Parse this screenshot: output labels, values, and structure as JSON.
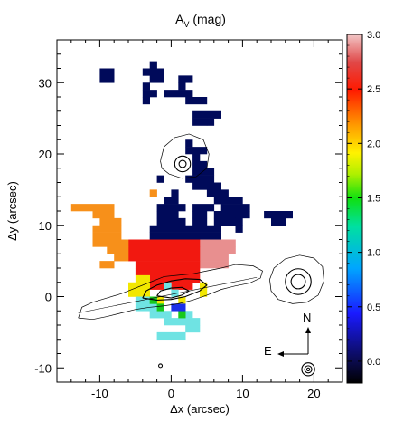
{
  "chart_data": {
    "type": "heatmap",
    "title_main": "A",
    "title_sub": "V",
    "title_unit": " (mag)",
    "xlabel": "Δx (arcsec)",
    "ylabel": "Δy (arcsec)",
    "xlim": [
      -16,
      24
    ],
    "ylim": [
      -12,
      36
    ],
    "xticks": [
      -10,
      0,
      10,
      20
    ],
    "yticks": [
      -10,
      0,
      10,
      20,
      30
    ],
    "colorbar": {
      "range": [
        -0.2,
        3.0
      ],
      "ticks": [
        "0.0",
        "0.5",
        "1.0",
        "1.5",
        "2.0",
        "2.5",
        "3.0"
      ],
      "tick_values": [
        0.0,
        0.5,
        1.0,
        1.5,
        2.0,
        2.5,
        3.0
      ]
    },
    "compass": {
      "north": "N",
      "east": "E"
    },
    "cell_size": 1,
    "regions": [
      {
        "av": 0.0,
        "color": "#000a5a",
        "rects": [
          [
            -10,
            30,
            2,
            2
          ],
          [
            -3,
            32,
            1,
            1
          ],
          [
            -4,
            31,
            3,
            1
          ],
          [
            -3,
            30,
            2,
            1
          ],
          [
            -4,
            29,
            1,
            1
          ],
          [
            1,
            30,
            2,
            1
          ],
          [
            1,
            29,
            1,
            1
          ],
          [
            -1,
            28,
            4,
            1
          ],
          [
            -4,
            28,
            2,
            1
          ],
          [
            2,
            27,
            3,
            1
          ],
          [
            -4,
            27,
            1,
            1
          ],
          [
            3,
            25,
            4,
            1
          ],
          [
            3,
            24,
            2,
            1
          ],
          [
            5,
            24,
            1,
            1
          ],
          [
            2,
            21,
            1,
            1
          ],
          [
            2,
            20,
            3,
            1
          ],
          [
            3,
            19,
            1,
            1
          ],
          [
            3,
            18,
            2,
            1
          ],
          [
            3,
            17,
            3,
            1
          ],
          [
            2,
            16,
            4,
            1
          ],
          [
            -2,
            16,
            1,
            1
          ],
          [
            3,
            15,
            4,
            1
          ],
          [
            5,
            14,
            3,
            1
          ],
          [
            0,
            14,
            1,
            1
          ],
          [
            -1,
            13,
            1,
            1
          ],
          [
            6,
            13,
            4,
            1
          ],
          [
            0,
            13,
            1,
            1
          ],
          [
            -2,
            12,
            4,
            1
          ],
          [
            3,
            12,
            3,
            1
          ],
          [
            7,
            12,
            4,
            1
          ],
          [
            -2,
            11,
            3,
            1
          ],
          [
            3,
            11,
            2,
            1
          ],
          [
            6,
            11,
            3,
            1
          ],
          [
            9,
            11,
            2,
            1
          ],
          [
            13,
            11,
            4,
            1
          ],
          [
            -2,
            10,
            4,
            1
          ],
          [
            3,
            10,
            2,
            1
          ],
          [
            6,
            10,
            3,
            1
          ],
          [
            9,
            10,
            1,
            1
          ],
          [
            14,
            10,
            2,
            1
          ],
          [
            -3,
            9,
            10,
            1
          ],
          [
            9,
            9,
            1,
            1
          ],
          [
            -3,
            8,
            10,
            1
          ]
        ]
      },
      {
        "av": 2.75,
        "color": "#e88f8f",
        "rects": [
          [
            4,
            7,
            5,
            1
          ],
          [
            4,
            6,
            5,
            1
          ],
          [
            4,
            5,
            4,
            1
          ],
          [
            4,
            4,
            4,
            1
          ]
        ]
      },
      {
        "av": 2.5,
        "color": "#f21810",
        "rects": [
          [
            -6,
            7,
            10,
            1
          ],
          [
            -6,
            6,
            10,
            1
          ],
          [
            -6,
            5,
            10,
            1
          ],
          [
            -5,
            4,
            9,
            1
          ],
          [
            -5,
            3,
            9,
            1
          ],
          [
            -4,
            2,
            8,
            1
          ],
          [
            -3,
            1,
            6,
            1
          ]
        ]
      },
      {
        "av": 1.8,
        "color": "#f7901a",
        "rects": [
          [
            -14,
            12,
            6,
            1
          ],
          [
            -11,
            11,
            3,
            1
          ],
          [
            -10,
            10,
            3,
            1
          ],
          [
            -11,
            9,
            4,
            1
          ],
          [
            -11,
            8,
            4,
            1
          ],
          [
            -11,
            7,
            5,
            1
          ],
          [
            -9,
            6,
            3,
            1
          ],
          [
            -8,
            5,
            2,
            1
          ],
          [
            -10,
            4,
            2,
            1
          ],
          [
            -3,
            14,
            1,
            1
          ]
        ]
      },
      {
        "av": 1.3,
        "color": "#f2e700",
        "rects": [
          [
            -5,
            2,
            2,
            1
          ],
          [
            -6,
            1,
            3,
            1
          ],
          [
            -6,
            0,
            3,
            1
          ],
          [
            4,
            1,
            1,
            1
          ],
          [
            4,
            0,
            1,
            1
          ],
          [
            -2,
            -1,
            1,
            1
          ],
          [
            1,
            -1,
            1,
            1
          ]
        ]
      },
      {
        "av": 1.0,
        "color": "#6fe3e3",
        "rects": [
          [
            -5,
            -1,
            3,
            1
          ],
          [
            -5,
            -2,
            3,
            1
          ],
          [
            -3,
            -3,
            3,
            1
          ],
          [
            2,
            -3,
            1,
            1
          ],
          [
            -1,
            -4,
            5,
            1
          ],
          [
            2,
            -5,
            2,
            1
          ],
          [
            -2,
            -6,
            4,
            1
          ],
          [
            0,
            0,
            1,
            1
          ],
          [
            -1,
            1,
            1,
            1
          ]
        ]
      },
      {
        "av": 1.4,
        "color": "#17c91b",
        "rects": [
          [
            -2,
            -2,
            1,
            1
          ],
          [
            -3,
            -1,
            1,
            1
          ],
          [
            1,
            -3,
            1,
            1
          ]
        ]
      },
      {
        "av": 0.3,
        "color": "#1c2fe8",
        "rects": [
          [
            0,
            -2,
            2,
            1
          ]
        ]
      }
    ],
    "contours": {
      "galaxy_outer": [
        [
          -13,
          -3
        ],
        [
          -11,
          -3.2
        ],
        [
          -9,
          -2.8
        ],
        [
          -7,
          -2.3
        ],
        [
          -5,
          -1.8
        ],
        [
          -3,
          -1.5
        ],
        [
          -1,
          -1.3
        ],
        [
          1,
          -1
        ],
        [
          3,
          -0.5
        ],
        [
          5,
          0.2
        ],
        [
          7,
          1
        ],
        [
          9,
          1.5
        ],
        [
          11,
          1.9
        ],
        [
          12.5,
          2.6
        ],
        [
          12.8,
          3.6
        ],
        [
          11.5,
          4.3
        ],
        [
          9,
          4.5
        ],
        [
          7,
          4
        ],
        [
          5,
          3.6
        ],
        [
          3,
          3.2
        ],
        [
          1,
          3
        ],
        [
          -1,
          2.8
        ],
        [
          -3,
          2
        ],
        [
          -5,
          1.2
        ],
        [
          -7,
          0.4
        ],
        [
          -9,
          -0.2
        ],
        [
          -11,
          -0.8
        ],
        [
          -12.5,
          -1.5
        ],
        [
          -13,
          -3
        ]
      ],
      "galaxy_mid": [
        [
          -4,
          -0.2
        ],
        [
          -2,
          -0.5
        ],
        [
          0,
          -0.4
        ],
        [
          2,
          0
        ],
        [
          4,
          0.8
        ],
        [
          5,
          1.6
        ],
        [
          4,
          2.4
        ],
        [
          2,
          2.5
        ],
        [
          0,
          2.2
        ],
        [
          -2,
          1.6
        ],
        [
          -3.5,
          0.8
        ],
        [
          -4,
          -0.2
        ]
      ],
      "galaxy_inner": [
        [
          -2,
          0.1
        ],
        [
          0,
          -0.2
        ],
        [
          1.5,
          0.2
        ],
        [
          2.5,
          0.8
        ],
        [
          1.5,
          1.3
        ],
        [
          0,
          1.2
        ],
        [
          -1.5,
          0.8
        ],
        [
          -2,
          0.1
        ]
      ],
      "slit": [
        [
          -13,
          -2.3
        ],
        [
          12,
          2.7
        ]
      ],
      "star_a_outer": [
        [
          13.8,
          2.4
        ],
        [
          14.4,
          4
        ],
        [
          16,
          5.3
        ],
        [
          18,
          5.8
        ],
        [
          20,
          5.4
        ],
        [
          21.2,
          4.2
        ],
        [
          21.4,
          2.2
        ],
        [
          20.6,
          0.2
        ],
        [
          19,
          -0.8
        ],
        [
          17,
          -1
        ],
        [
          15,
          -0.4
        ],
        [
          14,
          0.8
        ],
        [
          13.8,
          2.4
        ]
      ],
      "star_b_outer": [
        [
          -1.5,
          19
        ],
        [
          -1,
          21
        ],
        [
          0.5,
          22.3
        ],
        [
          2.5,
          22.8
        ],
        [
          4.5,
          22
        ],
        [
          5.3,
          20
        ],
        [
          5,
          18
        ],
        [
          3.5,
          16.8
        ],
        [
          1.5,
          16.6
        ],
        [
          -0.3,
          17.2
        ],
        [
          -1.3,
          18
        ],
        [
          -1.5,
          19
        ]
      ],
      "stars": [
        {
          "cx": 17.8,
          "cy": 2.1,
          "r": [
            1.0,
            1.8
          ]
        },
        {
          "cx": 1.6,
          "cy": 18.6,
          "r": [
            0.5,
            1.1
          ]
        },
        {
          "cx": 19.2,
          "cy": -10.2,
          "r": [
            0.2,
            0.5,
            0.9
          ]
        },
        {
          "cx": -1.5,
          "cy": -9.7,
          "r": [
            0.25
          ]
        }
      ]
    }
  }
}
